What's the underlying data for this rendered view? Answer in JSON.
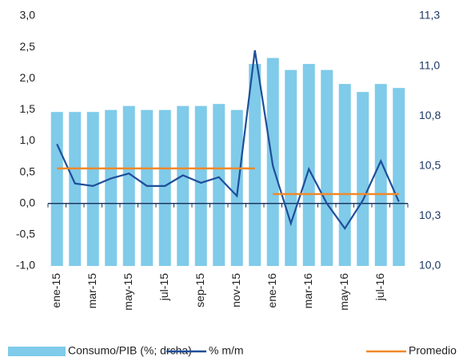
{
  "chart_data": {
    "type": "bar_line",
    "categories": [
      "ene-15",
      null,
      "mar-15",
      null,
      "may-15",
      null,
      "jul-15",
      null,
      "sep-15",
      null,
      "nov-15",
      null,
      "ene-16",
      null,
      "mar-16",
      null,
      "may-16",
      null,
      "jul-16",
      null
    ],
    "series": [
      {
        "name": "Consumo/PIB (%; drcha)",
        "type": "bar",
        "axis": "y2",
        "color": "#7fcbe9",
        "values": [
          10.77,
          10.77,
          10.77,
          10.78,
          10.8,
          10.78,
          10.78,
          10.8,
          10.8,
          10.81,
          10.78,
          11.01,
          11.04,
          10.98,
          11.01,
          10.98,
          10.91,
          10.87,
          10.91,
          10.89
        ]
      },
      {
        "name": "% m/m",
        "type": "line",
        "color": "#1f4e9a",
        "values": [
          0.95,
          0.32,
          0.28,
          0.4,
          0.48,
          0.28,
          0.28,
          0.45,
          0.33,
          0.42,
          0.12,
          2.45,
          0.6,
          -0.32,
          0.55,
          0.0,
          -0.4,
          0.05,
          0.68,
          0.03
        ]
      },
      {
        "name": "Promedio",
        "type": "step",
        "color": "#f0892a",
        "values": [
          0.56,
          0.56,
          0.56,
          0.56,
          0.56,
          0.56,
          0.56,
          0.56,
          0.56,
          0.56,
          0.56,
          0.56,
          0.15,
          0.15,
          0.15,
          0.15,
          0.15,
          0.15,
          0.15,
          0.15
        ]
      }
    ],
    "ylim": [
      -1.0,
      3.0
    ],
    "yticks": [
      {
        "value": 3.0,
        "label": "3,0"
      },
      {
        "value": 2.5,
        "label": "2,5"
      },
      {
        "value": 2.0,
        "label": "2,0"
      },
      {
        "value": 1.5,
        "label": "1,5"
      },
      {
        "value": 1.0,
        "label": "1,0"
      },
      {
        "value": 0.5,
        "label": "0,5"
      },
      {
        "value": 0.0,
        "label": "0,0"
      },
      {
        "value": -0.5,
        "label": "-0,5"
      },
      {
        "value": -1.0,
        "label": "-1,0"
      }
    ],
    "y2lim": [
      10.0,
      11.25
    ],
    "y2ticks": [
      {
        "value": 11.25,
        "label": "11,3"
      },
      {
        "value": 11.0,
        "label": "11,0"
      },
      {
        "value": 10.75,
        "label": "10,8"
      },
      {
        "value": 10.5,
        "label": "10,5"
      },
      {
        "value": 10.25,
        "label": "10,3"
      },
      {
        "value": 10.0,
        "label": "10,0"
      }
    ],
    "legend": "bottom"
  }
}
